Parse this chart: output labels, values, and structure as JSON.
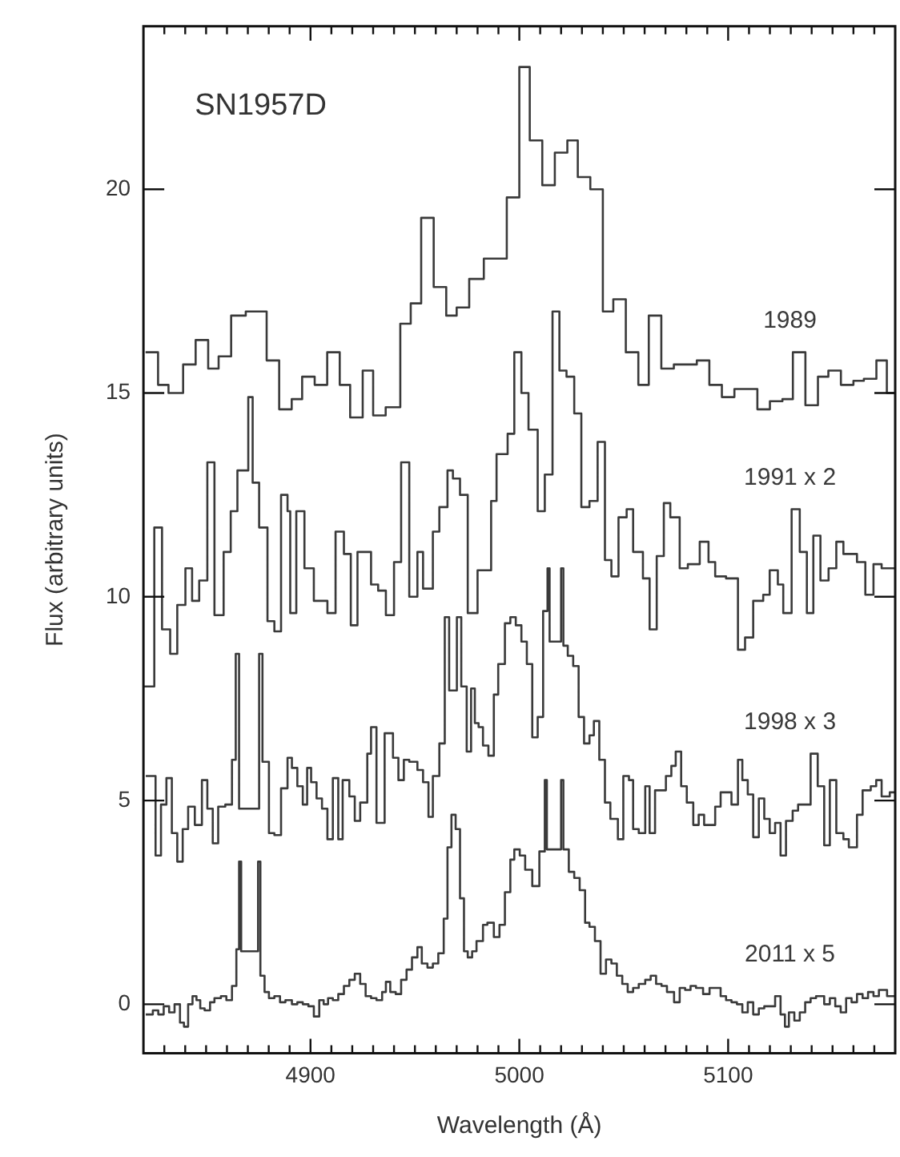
{
  "chart_data": {
    "type": "step",
    "title": "SN1957D",
    "xlabel": "Wavelength (Å)",
    "ylabel": "Flux (arbitrary units)",
    "xlim": [
      4820,
      5180
    ],
    "ylim": [
      -1.2,
      24
    ],
    "xticks": [
      {
        "value": 4830,
        "label": null
      },
      {
        "value": 4840,
        "label": null
      },
      {
        "value": 4850,
        "label": null
      },
      {
        "value": 4860,
        "label": null
      },
      {
        "value": 4870,
        "label": null
      },
      {
        "value": 4880,
        "label": null
      },
      {
        "value": 4890,
        "label": null
      },
      4900,
      {
        "value": 4910,
        "label": null
      },
      {
        "value": 4920,
        "label": null
      },
      {
        "value": 4930,
        "label": null
      },
      {
        "value": 4940,
        "label": null
      },
      {
        "value": 4950,
        "label": null
      },
      {
        "value": 4960,
        "label": null
      },
      {
        "value": 4970,
        "label": null
      },
      {
        "value": 4980,
        "label": null
      },
      {
        "value": 4990,
        "label": null
      },
      5000,
      {
        "value": 5010,
        "label": null
      },
      {
        "value": 5020,
        "label": null
      },
      {
        "value": 5030,
        "label": null
      },
      {
        "value": 5040,
        "label": null
      },
      {
        "value": 5050,
        "label": null
      },
      {
        "value": 5060,
        "label": null
      },
      {
        "value": 5070,
        "label": null
      },
      {
        "value": 5080,
        "label": null
      },
      {
        "value": 5090,
        "label": null
      },
      5100,
      {
        "value": 5110,
        "label": null
      },
      {
        "value": 5120,
        "label": null
      },
      {
        "value": 5130,
        "label": null
      },
      {
        "value": 5140,
        "label": null
      },
      {
        "value": 5150,
        "label": null
      },
      {
        "value": 5160,
        "label": null
      },
      {
        "value": 5170,
        "label": null
      }
    ],
    "yticks": [
      0,
      5,
      10,
      15,
      20
    ],
    "series": [
      {
        "name": "1989",
        "color": "#3a3a3a",
        "x": [
          4821,
          4827,
          4832,
          4839,
          4845,
          4851,
          4856,
          4862,
          4869,
          4879,
          4885,
          4891,
          4896,
          4902,
          4908,
          4914,
          4919,
          4925,
          4930,
          4936,
          4943,
          4948,
          4953,
          4959,
          4965,
          4970,
          4976,
          4983,
          4994,
          5000,
          5005,
          5011,
          5017,
          5023,
          5028,
          5034,
          5040,
          5045,
          5051,
          5057,
          5062,
          5068,
          5074,
          5085,
          5091,
          5097,
          5103,
          5114,
          5120,
          5126,
          5131,
          5137,
          5143,
          5148,
          5154,
          5160,
          5165,
          5171,
          5176,
          5180
        ],
        "values": [
          16.0,
          15.2,
          15.0,
          15.7,
          16.3,
          15.6,
          15.9,
          16.9,
          17.0,
          15.8,
          14.6,
          14.85,
          15.4,
          15.2,
          16.0,
          15.2,
          14.4,
          15.55,
          14.45,
          14.65,
          16.7,
          17.2,
          19.3,
          17.6,
          16.9,
          17.1,
          17.8,
          18.3,
          19.8,
          23.0,
          21.2,
          20.1,
          20.9,
          21.2,
          20.3,
          20.0,
          17.0,
          17.3,
          16.0,
          15.2,
          16.9,
          15.6,
          15.7,
          15.8,
          15.2,
          14.9,
          15.1,
          14.6,
          14.8,
          14.85,
          16.0,
          14.7,
          15.4,
          15.55,
          15.2,
          15.3,
          15.35,
          15.8,
          15.0,
          15.0
        ]
      },
      {
        "name": "1991 x 2",
        "color": "#3a3a3a",
        "x": [
          4820,
          4825.2,
          4828.9,
          4832.8,
          4836.2,
          4840.1,
          4843.3,
          4846.7,
          4850.6,
          4854.0,
          4858.4,
          4861.8,
          4865.0,
          4870.2,
          4872.3,
          4875.4,
          4879.4,
          4882.7,
          4885.9,
          4889.0,
          4890.3,
          4893.2,
          4897.1,
          4901.6,
          4908.1,
          4912.0,
          4916.0,
          4919.3,
          4922.5,
          4929.0,
          4932.4,
          4936.1,
          4940.0,
          4943.4,
          4947.3,
          4951.2,
          4953.9,
          4958.6,
          4961.7,
          4965.6,
          4968.2,
          4971.6,
          4975.3,
          4980.0,
          4986.5,
          4989.1,
          4994.4,
          4997.6,
          5001.0,
          5004.4,
          5008.8,
          5012.2,
          5015.9,
          5019.2,
          5022.6,
          5026.3,
          5029.7,
          5033.6,
          5037.5,
          5041.0,
          5044.1,
          5047.5,
          5051.4,
          5054.5,
          5059.2,
          5062.4,
          5065.8,
          5069.2,
          5072.3,
          5076.8,
          5080.7,
          5086.4,
          5090.6,
          5093.8,
          5099.0,
          5104.7,
          5108.1,
          5112.0,
          5116.8,
          5119.9,
          5123.8,
          5126.4,
          5130.4,
          5134.3,
          5137.7,
          5140.8,
          5144.2,
          5148.1,
          5151.8,
          5155.2,
          5161.7,
          5165.7,
          5169.6,
          5173.5,
          5180
        ],
        "values": [
          7.8,
          11.7,
          9.2,
          8.6,
          9.8,
          10.7,
          9.9,
          10.4,
          13.3,
          9.55,
          11.1,
          12.1,
          13.1,
          14.9,
          12.8,
          11.7,
          9.4,
          9.15,
          12.5,
          12.1,
          9.6,
          12.1,
          10.7,
          9.9,
          9.6,
          11.6,
          11.05,
          9.3,
          11.1,
          10.3,
          10.15,
          9.55,
          10.85,
          13.3,
          10.0,
          11.1,
          10.2,
          11.6,
          12.2,
          13.1,
          12.9,
          12.5,
          9.6,
          10.65,
          12.35,
          13.5,
          14.0,
          16.0,
          15.0,
          14.1,
          12.1,
          13.0,
          17.0,
          15.55,
          15.4,
          14.5,
          12.2,
          12.35,
          13.8,
          10.9,
          10.5,
          11.95,
          12.15,
          11.1,
          10.45,
          9.2,
          11.0,
          12.3,
          11.95,
          10.7,
          10.8,
          11.35,
          10.85,
          10.5,
          10.45,
          8.7,
          9.0,
          9.9,
          10.05,
          10.65,
          10.3,
          9.6,
          12.15,
          11.1,
          9.6,
          11.5,
          10.4,
          10.7,
          11.35,
          11.05,
          10.85,
          10.05,
          10.8,
          10.7,
          10.7
        ]
      },
      {
        "name": "1998 x 3",
        "color": "#3a3a3a",
        "x": [
          4821.1,
          4825.8,
          4828.4,
          4831.0,
          4833.6,
          4836.2,
          4838.8,
          4841.4,
          4844.6,
          4848.0,
          4850.6,
          4853.2,
          4855.8,
          4859.2,
          4862.4,
          4864.2,
          4865.8,
          4875.4,
          4877.0,
          4880.1,
          4882.7,
          4885.9,
          4889.0,
          4891.1,
          4893.7,
          4896.3,
          4898.4,
          4900.3,
          4902.9,
          4905.5,
          4908.1,
          4910.7,
          4913.3,
          4915.4,
          4918.6,
          4921.2,
          4923.8,
          4927.2,
          4929.0,
          4931.6,
          4935.5,
          4939.5,
          4942.1,
          4944.7,
          4947.3,
          4951.2,
          4953.9,
          4956.5,
          4958.6,
          4961.7,
          4964.3,
          4966.4,
          4970.1,
          4972.2,
          4974.8,
          4976.9,
          4978.7,
          4980.5,
          4982.6,
          4985.2,
          4987.8,
          4989.9,
          4993.1,
          4995.7,
          4998.3,
          5001.0,
          5003.6,
          5006.2,
          5008.8,
          5011.4,
          5013.5,
          5014.5,
          5020.0,
          5021.1,
          5023.2,
          5025.8,
          5028.4,
          5031.0,
          5033.6,
          5035.7,
          5038.3,
          5041.0,
          5043.6,
          5047.2,
          5049.8,
          5052.5,
          5054.5,
          5057.2,
          5060.3,
          5062.4,
          5065.0,
          5070.2,
          5072.8,
          5074.9,
          5077.5,
          5080.2,
          5083.3,
          5085.9,
          5088.5,
          5093.8,
          5096.4,
          5101.6,
          5104.7,
          5106.8,
          5109.4,
          5112.0,
          5114.7,
          5117.3,
          5119.9,
          5122.5,
          5125.1,
          5127.7,
          5130.9,
          5133.5,
          5139.5,
          5142.9,
          5146.0,
          5148.7,
          5151.8,
          5155.2,
          5157.8,
          5161.7,
          5164.4,
          5168.3,
          5170.9,
          5173.5,
          5177.4,
          5180
        ],
        "values": [
          5.6,
          3.65,
          4.9,
          5.55,
          4.2,
          3.5,
          4.3,
          4.85,
          4.4,
          5.5,
          4.8,
          3.95,
          4.85,
          4.9,
          6.0,
          8.6,
          4.8,
          8.6,
          5.95,
          4.2,
          4.15,
          5.3,
          6.05,
          5.8,
          5.35,
          4.9,
          5.8,
          5.45,
          5.05,
          4.8,
          4.05,
          5.55,
          4.05,
          5.5,
          5.1,
          4.5,
          4.95,
          6.15,
          6.8,
          4.45,
          6.65,
          6.05,
          5.5,
          6.0,
          5.95,
          5.75,
          5.45,
          4.6,
          5.6,
          6.4,
          9.5,
          7.7,
          9.5,
          7.8,
          6.2,
          7.75,
          6.9,
          6.8,
          6.35,
          6.1,
          7.6,
          8.35,
          9.35,
          9.5,
          9.3,
          8.9,
          8.35,
          6.55,
          7.05,
          9.65,
          10.7,
          8.9,
          10.7,
          8.8,
          8.55,
          8.3,
          7.05,
          6.4,
          6.6,
          6.95,
          6.0,
          4.95,
          4.55,
          4.05,
          5.6,
          5.5,
          4.3,
          4.2,
          5.35,
          4.2,
          5.25,
          5.6,
          5.85,
          6.2,
          5.35,
          4.95,
          4.4,
          4.65,
          4.4,
          4.85,
          5.2,
          4.9,
          6.0,
          5.5,
          5.15,
          4.1,
          5.05,
          4.55,
          4.2,
          4.45,
          3.65,
          4.5,
          4.75,
          4.9,
          6.15,
          5.35,
          3.9,
          5.5,
          4.2,
          4.05,
          3.85,
          4.65,
          5.25,
          5.35,
          5.5,
          5.1,
          5.2,
          5.2
        ]
      },
      {
        "name": "2011 x 5",
        "color": "#3a3a3a",
        "x": [
          4821.1,
          4824.5,
          4827.1,
          4829.7,
          4832.3,
          4834.9,
          4837.5,
          4839.4,
          4841.4,
          4843.5,
          4845.4,
          4847.2,
          4849.3,
          4851.9,
          4854.0,
          4857.1,
          4859.7,
          4862.4,
          4864.5,
          4865.8,
          4866.8,
          4874.9,
          4876.0,
          4878.0,
          4880.1,
          4882.7,
          4885.4,
          4888.0,
          4891.1,
          4893.7,
          4896.3,
          4899.0,
          4901.6,
          4904.2,
          4906.3,
          4908.4,
          4910.7,
          4913.3,
          4916.0,
          4918.6,
          4921.2,
          4923.8,
          4926.4,
          4929.0,
          4931.6,
          4934.3,
          4936.1,
          4938.2,
          4940.8,
          4943.4,
          4946.0,
          4948.6,
          4951.2,
          4953.3,
          4956.0,
          4958.6,
          4961.2,
          4963.8,
          4965.6,
          4967.5,
          4969.5,
          4971.6,
          4973.5,
          4975.3,
          4977.4,
          4979.5,
          4982.6,
          4984.7,
          4987.8,
          4990.5,
          4993.1,
          4995.7,
          4997.6,
          5000.2,
          5002.8,
          5006.2,
          5009.6,
          5012.2,
          5013.2,
          5020.0,
          5021.1,
          5023.7,
          5026.3,
          5028.9,
          5031.5,
          5033.6,
          5036.2,
          5038.9,
          5041.5,
          5044.1,
          5046.7,
          5049.3,
          5051.9,
          5054.5,
          5057.2,
          5060.3,
          5062.9,
          5065.5,
          5068.1,
          5070.7,
          5074.1,
          5076.8,
          5079.4,
          5082.0,
          5084.6,
          5088.0,
          5091.1,
          5096.4,
          5099.0,
          5101.6,
          5104.2,
          5106.8,
          5109.4,
          5112.0,
          5114.7,
          5117.3,
          5122.5,
          5125.1,
          5127.2,
          5129.1,
          5131.7,
          5134.3,
          5136.9,
          5139.5,
          5142.1,
          5146.0,
          5148.7,
          5151.3,
          5153.9,
          5156.5,
          5159.1,
          5161.7,
          5164.4,
          5167.0,
          5169.6,
          5172.2,
          5176.1,
          5180
        ],
        "values": [
          -0.25,
          -0.15,
          -0.25,
          -0.05,
          -0.2,
          0.0,
          -0.45,
          -0.55,
          0.0,
          0.2,
          0.1,
          -0.1,
          -0.15,
          0.05,
          0.15,
          0.2,
          0.1,
          0.45,
          1.35,
          3.5,
          1.3,
          3.5,
          0.7,
          0.3,
          0.15,
          0.2,
          0.05,
          0.1,
          0.0,
          0.05,
          0.0,
          -0.05,
          -0.3,
          0.1,
          0.0,
          0.15,
          0.1,
          0.25,
          0.45,
          0.6,
          0.75,
          0.5,
          0.2,
          0.15,
          0.1,
          0.3,
          0.55,
          0.3,
          0.25,
          0.6,
          0.85,
          1.15,
          1.4,
          1.0,
          0.9,
          1.0,
          1.25,
          2.1,
          3.85,
          4.65,
          4.3,
          2.6,
          1.3,
          1.15,
          1.3,
          1.55,
          1.95,
          2.0,
          1.65,
          1.95,
          2.75,
          3.55,
          3.8,
          3.65,
          3.3,
          2.9,
          3.75,
          5.5,
          3.8,
          5.5,
          3.8,
          3.25,
          3.1,
          2.8,
          2.0,
          1.9,
          1.55,
          0.75,
          1.1,
          1.0,
          0.7,
          0.5,
          0.3,
          0.4,
          0.5,
          0.6,
          0.7,
          0.5,
          0.45,
          0.3,
          0.05,
          0.4,
          0.35,
          0.45,
          0.4,
          0.25,
          0.4,
          0.2,
          0.1,
          0.05,
          0.0,
          -0.2,
          0.05,
          -0.25,
          -0.1,
          -0.05,
          0.2,
          -0.25,
          -0.55,
          -0.2,
          -0.4,
          -0.2,
          0.05,
          0.15,
          0.2,
          0.0,
          0.15,
          -0.05,
          -0.2,
          0.15,
          0.05,
          0.25,
          0.15,
          0.3,
          0.2,
          0.35,
          0.2,
          0.2
        ]
      }
    ]
  }
}
